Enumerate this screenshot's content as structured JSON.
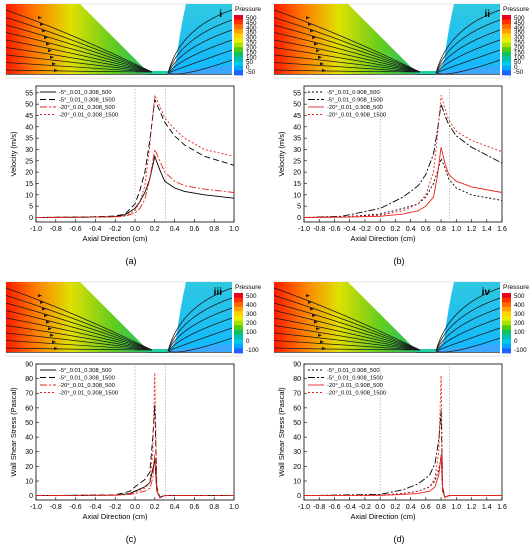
{
  "contour": {
    "title": "Pressure",
    "ticks_a": [
      "500",
      "450",
      "400",
      "350",
      "300",
      "250",
      "200",
      "150",
      "100",
      "50",
      "0",
      "-50"
    ],
    "ticks_c": [
      "500",
      "400",
      "300",
      "200",
      "100",
      "0",
      "-100"
    ],
    "colors": [
      "#e8001c",
      "#ff3000",
      "#ff6a00",
      "#ffa000",
      "#ffd400",
      "#e8f000",
      "#a8e000",
      "#50cc10",
      "#10c060",
      "#00c0b0",
      "#00c8e8",
      "#00a8ff",
      "#2060ff"
    ]
  },
  "chart_data": [
    {
      "id": "a",
      "type": "line",
      "panel_label": "i",
      "caption": "(a)",
      "xlabel": "Axial Direction (cm)",
      "ylabel": "Velocity (m/s)",
      "xlim": [
        -1.0,
        1.0
      ],
      "ylim": [
        -2,
        58
      ],
      "xticks": [
        "-1.0",
        "-0.8",
        "-0.6",
        "-0.4",
        "-0.2",
        "0.0",
        "0.2",
        "0.4",
        "0.6",
        "0.8",
        "1.0"
      ],
      "xtick_values": [
        -1.0,
        -0.8,
        -0.6,
        -0.4,
        -0.2,
        0.0,
        0.2,
        0.4,
        0.6,
        0.8,
        1.0
      ],
      "yticks": [
        "0",
        "5",
        "10",
        "15",
        "20",
        "25",
        "30",
        "35",
        "40",
        "45",
        "50",
        "55"
      ],
      "ytick_values": [
        0,
        5,
        10,
        15,
        20,
        25,
        30,
        35,
        40,
        45,
        50,
        55
      ],
      "vlines": [
        0.0,
        0.31
      ],
      "legend_position": "top-left",
      "series": [
        {
          "name": "-5°_0.01_0.308_500",
          "color": "#000000",
          "dash": "none",
          "x": [
            -1.0,
            -0.5,
            -0.2,
            -0.1,
            0.0,
            0.05,
            0.1,
            0.15,
            0.2,
            0.25,
            0.3,
            0.4,
            0.5,
            0.7,
            1.0
          ],
          "y": [
            0,
            0.1,
            0.4,
            1.2,
            4,
            7,
            11,
            17,
            27,
            21,
            16,
            13,
            11.5,
            10,
            8.5
          ]
        },
        {
          "name": "-5°_0.01_0.308_1500",
          "color": "#000000",
          "dash": "6,3",
          "x": [
            -1.0,
            -0.5,
            -0.2,
            -0.1,
            0.0,
            0.05,
            0.1,
            0.15,
            0.2,
            0.25,
            0.3,
            0.4,
            0.5,
            0.7,
            1.0
          ],
          "y": [
            0,
            0.2,
            0.6,
            1.5,
            6,
            12,
            20,
            34,
            52,
            47,
            42,
            36,
            32,
            27,
            23
          ]
        },
        {
          "name": "-20°_0.01_0.308_500",
          "color": "#e8231c",
          "dash": "7,2,2,2",
          "x": [
            -1.0,
            -0.5,
            -0.2,
            -0.1,
            0.0,
            0.05,
            0.1,
            0.15,
            0.2,
            0.25,
            0.3,
            0.4,
            0.5,
            0.7,
            1.0
          ],
          "y": [
            0,
            0.1,
            0.3,
            0.6,
            2,
            4,
            8,
            17,
            30,
            25,
            20,
            16,
            14,
            12.5,
            11
          ]
        },
        {
          "name": "-20°_0.01_0.308_1500",
          "color": "#e8231c",
          "dash": "2,2",
          "x": [
            -1.0,
            -0.5,
            -0.2,
            -0.1,
            0.0,
            0.05,
            0.1,
            0.15,
            0.2,
            0.25,
            0.3,
            0.4,
            0.5,
            0.7,
            1.0
          ],
          "y": [
            0,
            0.1,
            0.3,
            0.8,
            3,
            7,
            14,
            32,
            54,
            49,
            44,
            39,
            35,
            30,
            27
          ]
        }
      ]
    },
    {
      "id": "b",
      "type": "line",
      "panel_label": "ii",
      "caption": "(b)",
      "xlabel": "Axial Direction (cm)",
      "ylabel": "Velocity (m/s)",
      "xlim": [
        -1.0,
        1.6
      ],
      "ylim": [
        -2,
        58
      ],
      "xticks": [
        "-1.0",
        "-0.8",
        "-0.6",
        "-0.4",
        "-0.2",
        "0.0",
        "0.2",
        "0.4",
        "0.6",
        "0.8",
        "1.0",
        "1.2",
        "1.4",
        "1.6"
      ],
      "xtick_values": [
        -1.0,
        -0.8,
        -0.6,
        -0.4,
        -0.2,
        0.0,
        0.2,
        0.4,
        0.6,
        0.8,
        1.0,
        1.2,
        1.4,
        1.6
      ],
      "yticks": [
        "0",
        "5",
        "10",
        "15",
        "20",
        "25",
        "30",
        "35",
        "40",
        "45",
        "50",
        "55"
      ],
      "ytick_values": [
        0,
        5,
        10,
        15,
        20,
        25,
        30,
        35,
        40,
        45,
        50,
        55
      ],
      "vlines": [
        0.0,
        0.91
      ],
      "legend_position": "top-left",
      "series": [
        {
          "name": "-5°_0.01_0.908_500",
          "color": "#000000",
          "dash": "2,2",
          "x": [
            -1.0,
            -0.5,
            0.0,
            0.3,
            0.5,
            0.6,
            0.7,
            0.75,
            0.8,
            0.85,
            0.9,
            1.0,
            1.2,
            1.6
          ],
          "y": [
            0,
            0.2,
            1.5,
            4,
            6,
            9,
            15,
            20,
            26,
            22,
            17,
            13,
            10,
            7.5
          ]
        },
        {
          "name": "-5°_0.01_0.908_1500",
          "color": "#000000",
          "dash": "7,2,2,2",
          "x": [
            -1.0,
            -0.5,
            0.0,
            0.3,
            0.5,
            0.6,
            0.7,
            0.75,
            0.8,
            0.85,
            0.9,
            1.0,
            1.2,
            1.6
          ],
          "y": [
            0,
            0.5,
            4,
            9,
            14,
            19,
            28,
            38,
            50,
            45,
            41,
            36,
            31,
            24
          ]
        },
        {
          "name": "-20°_0.01_0.908_500",
          "color": "#e8231c",
          "dash": "none",
          "x": [
            -1.0,
            -0.5,
            0.0,
            0.3,
            0.5,
            0.6,
            0.7,
            0.75,
            0.8,
            0.85,
            0.9,
            1.0,
            1.2,
            1.6
          ],
          "y": [
            0,
            0.1,
            0.5,
            1.5,
            3,
            5,
            9,
            18,
            31,
            24,
            19,
            16,
            13.5,
            11
          ]
        },
        {
          "name": "-20°_0.01_0.908_1500",
          "color": "#e8231c",
          "dash": "2,2",
          "x": [
            -1.0,
            -0.5,
            0.0,
            0.3,
            0.5,
            0.6,
            0.7,
            0.75,
            0.8,
            0.85,
            0.9,
            1.0,
            1.2,
            1.6
          ],
          "y": [
            0,
            0.2,
            1,
            3,
            6,
            10,
            20,
            35,
            54,
            48,
            43,
            38,
            34,
            29
          ]
        }
      ]
    },
    {
      "id": "c",
      "type": "line",
      "panel_label": "iii",
      "caption": "(c)",
      "xlabel": "Axial Direction (cm)",
      "ylabel": "Wall Shear Stress (Pascal)",
      "xlim": [
        -1.0,
        1.0
      ],
      "ylim": [
        -3,
        90
      ],
      "xticks": [
        "-1.0",
        "-0.8",
        "-0.6",
        "-0.4",
        "-0.2",
        "0.0",
        "0.2",
        "0.4",
        "0.6",
        "0.8",
        "1.0"
      ],
      "xtick_values": [
        -1.0,
        -0.8,
        -0.6,
        -0.4,
        -0.2,
        0.0,
        0.2,
        0.4,
        0.6,
        0.8,
        1.0
      ],
      "yticks": [
        "0",
        "10",
        "20",
        "30",
        "40",
        "50",
        "60",
        "70",
        "80",
        "90"
      ],
      "ytick_values": [
        0,
        10,
        20,
        30,
        40,
        50,
        60,
        70,
        80,
        90
      ],
      "vlines": [
        0.0,
        0.31
      ],
      "legend_position": "top-left",
      "series": [
        {
          "name": "-5°_0.01_0.308_500",
          "color": "#000000",
          "dash": "none",
          "x": [
            -1.0,
            -0.2,
            -0.05,
            0.0,
            0.1,
            0.15,
            0.18,
            0.2,
            0.22,
            0.25,
            0.3,
            1.0
          ],
          "y": [
            0,
            0.3,
            1.5,
            3,
            6,
            9,
            18,
            25,
            3,
            -1,
            0,
            0
          ]
        },
        {
          "name": "-5°_0.01_0.308_1500",
          "color": "#000000",
          "dash": "6,3",
          "x": [
            -1.0,
            -0.2,
            -0.05,
            0.0,
            0.1,
            0.15,
            0.18,
            0.2,
            0.22,
            0.25,
            0.3,
            1.0
          ],
          "y": [
            0,
            0.5,
            3,
            6,
            11,
            16,
            40,
            62,
            6,
            -1.5,
            0,
            0
          ]
        },
        {
          "name": "-20°_0.01_0.308_500",
          "color": "#e8231c",
          "dash": "7,2,2,2",
          "x": [
            -1.0,
            -0.2,
            -0.05,
            0.0,
            0.1,
            0.15,
            0.18,
            0.2,
            0.22,
            0.25,
            0.3,
            1.0
          ],
          "y": [
            0,
            0.2,
            0.8,
            1.5,
            3,
            5,
            12,
            28,
            3,
            -1,
            0,
            0
          ]
        },
        {
          "name": "-20°_0.01_0.308_1500",
          "color": "#e8231c",
          "dash": "2,2",
          "x": [
            -1.0,
            -0.2,
            -0.05,
            0.0,
            0.1,
            0.15,
            0.18,
            0.2,
            0.22,
            0.25,
            0.3,
            1.0
          ],
          "y": [
            0,
            0.3,
            1.2,
            2.5,
            5,
            9,
            30,
            84,
            6,
            -1.5,
            0,
            0
          ]
        }
      ]
    },
    {
      "id": "d",
      "type": "line",
      "panel_label": "iv",
      "caption": "(d)",
      "xlabel": "Axial Direction (cm)",
      "ylabel": "Wall Shear Stress (Pascal)",
      "xlim": [
        -1.0,
        1.6
      ],
      "ylim": [
        -3,
        90
      ],
      "xticks": [
        "-1.0",
        "-0.8",
        "-0.6",
        "-0.4",
        "-0.2",
        "0.0",
        "0.2",
        "0.4",
        "0.6",
        "0.8",
        "1.0",
        "1.2",
        "1.4",
        "1.6"
      ],
      "xtick_values": [
        -1.0,
        -0.8,
        -0.6,
        -0.4,
        -0.2,
        0.0,
        0.2,
        0.4,
        0.6,
        0.8,
        1.0,
        1.2,
        1.4,
        1.6
      ],
      "yticks": [
        "0",
        "10",
        "20",
        "30",
        "40",
        "50",
        "60",
        "70",
        "80",
        "90"
      ],
      "ytick_values": [
        0,
        10,
        20,
        30,
        40,
        50,
        60,
        70,
        80,
        90
      ],
      "vlines": [
        0.0,
        0.91
      ],
      "legend_position": "top-left",
      "series": [
        {
          "name": "-5°_0.01_0.908_500",
          "color": "#000000",
          "dash": "2,2",
          "x": [
            -1.0,
            0.0,
            0.3,
            0.5,
            0.65,
            0.72,
            0.77,
            0.8,
            0.82,
            0.85,
            0.9,
            1.6
          ],
          "y": [
            0,
            0.3,
            1.5,
            3,
            6,
            10,
            18,
            26,
            3,
            -1,
            0,
            0
          ]
        },
        {
          "name": "-5°_0.01_0.908_1500",
          "color": "#000000",
          "dash": "7,2,2,2",
          "x": [
            -1.0,
            0.0,
            0.3,
            0.5,
            0.65,
            0.72,
            0.77,
            0.8,
            0.82,
            0.85,
            0.9,
            1.6
          ],
          "y": [
            0,
            0.8,
            4,
            8,
            14,
            22,
            38,
            58,
            6,
            -1.5,
            0,
            0
          ]
        },
        {
          "name": "-20°_0.01_0.908_500",
          "color": "#e8231c",
          "dash": "none",
          "x": [
            -1.0,
            0.0,
            0.3,
            0.5,
            0.65,
            0.72,
            0.77,
            0.8,
            0.82,
            0.85,
            0.9,
            1.6
          ],
          "y": [
            0,
            0.2,
            0.8,
            1.5,
            3,
            6,
            14,
            28,
            3,
            -1,
            0,
            0
          ]
        },
        {
          "name": "-20°_0.01_0.908_1500",
          "color": "#e8231c",
          "dash": "2,2",
          "x": [
            -1.0,
            0.0,
            0.3,
            0.5,
            0.65,
            0.72,
            0.77,
            0.8,
            0.82,
            0.85,
            0.9,
            1.6
          ],
          "y": [
            0,
            0.3,
            1.5,
            3,
            6,
            12,
            30,
            82,
            6,
            -1.5,
            0,
            0
          ]
        }
      ]
    }
  ]
}
